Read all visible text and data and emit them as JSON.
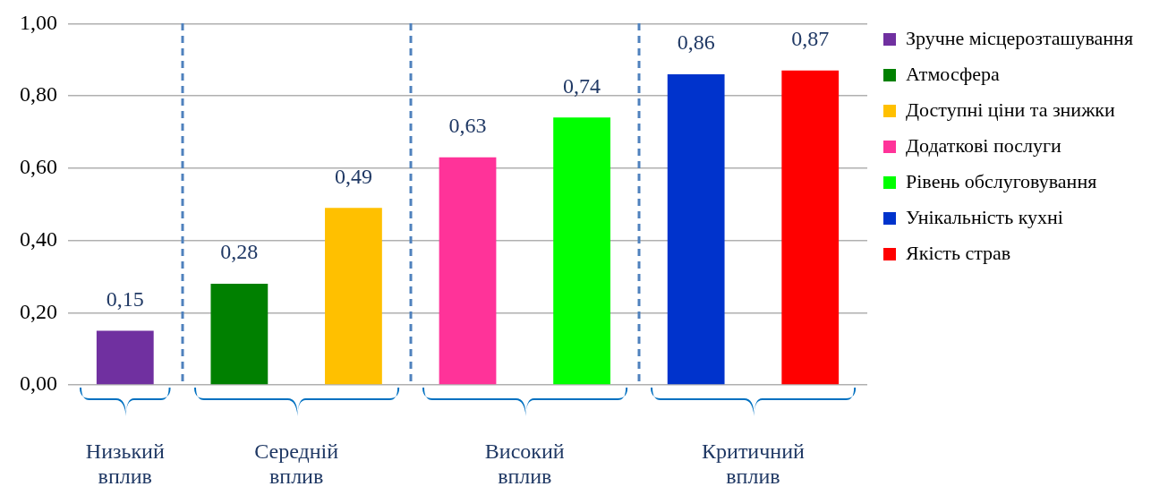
{
  "chart_data": {
    "type": "bar",
    "ylim": [
      0,
      1
    ],
    "yticks": [
      {
        "value": 0,
        "label": "0,00"
      },
      {
        "value": 0.2,
        "label": "0,20"
      },
      {
        "value": 0.4,
        "label": "0,40"
      },
      {
        "value": 0.6,
        "label": "0,60"
      },
      {
        "value": 0.8,
        "label": "0,80"
      },
      {
        "value": 1,
        "label": "1,00"
      }
    ],
    "tick_labels": "y",
    "grid": "y",
    "legend": "right",
    "categories": [
      null,
      null,
      null,
      null,
      null,
      null,
      null
    ],
    "series": [
      {
        "name": "Зручне місцерозташування",
        "color": "#7030a0",
        "values": [
          0.15,
          null,
          null,
          null,
          null,
          null,
          null
        ],
        "value_labels": [
          "0,15",
          null,
          null,
          null,
          null,
          null,
          null
        ]
      },
      {
        "name": "Атмосфера",
        "color": "#008000",
        "values": [
          null,
          0.28,
          null,
          null,
          null,
          null,
          null
        ],
        "value_labels": [
          null,
          "0,28",
          null,
          null,
          null,
          null,
          null
        ]
      },
      {
        "name": "Доступні ціни та знижки",
        "color": "#ffc000",
        "values": [
          null,
          null,
          0.49,
          null,
          null,
          null,
          null
        ],
        "value_labels": [
          null,
          null,
          "0,49",
          null,
          null,
          null,
          null
        ]
      },
      {
        "name": "Додаткові послуги",
        "color": "#ff3399",
        "values": [
          null,
          null,
          null,
          0.63,
          null,
          null,
          null
        ],
        "value_labels": [
          null,
          null,
          null,
          "0,63",
          null,
          null,
          null
        ]
      },
      {
        "name": "Рівень обслуговування",
        "color": "#00ff00",
        "values": [
          null,
          null,
          null,
          null,
          0.74,
          null,
          null
        ],
        "value_labels": [
          null,
          null,
          null,
          null,
          "0,74",
          null,
          null
        ]
      },
      {
        "name": "Унікальність кухні",
        "color": "#0033cc",
        "values": [
          null,
          null,
          null,
          null,
          null,
          0.86,
          null
        ],
        "value_labels": [
          null,
          null,
          null,
          null,
          null,
          "0,86",
          null
        ]
      },
      {
        "name": "Якість страв",
        "color": "#ff0000",
        "values": [
          null,
          null,
          null,
          null,
          null,
          null,
          0.87
        ],
        "value_labels": [
          null,
          null,
          null,
          null,
          null,
          null,
          "0,87"
        ]
      }
    ],
    "annotations": [
      "Низький вплив",
      "Середній вплив",
      "Високий вплив",
      "Критичний вплив"
    ]
  }
}
